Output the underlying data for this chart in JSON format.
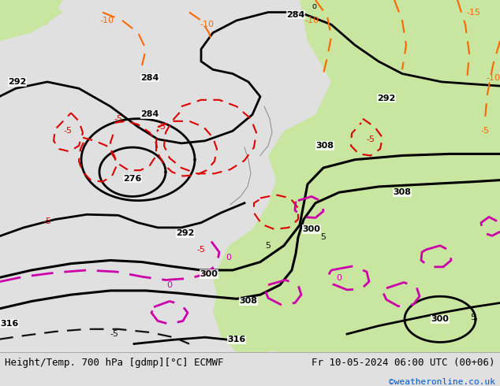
{
  "title_left": "Height/Temp. 700 hPa [gdmp][°C] ECMWF",
  "title_right": "Fr 10-05-2024 06:00 UTC (00+06)",
  "credit": "©weatheronline.co.uk",
  "bg_ocean": "#d8d8d8",
  "bg_land_green": "#c8e6a0",
  "bg_land_dark": "#b8d890",
  "contour_color": "#000000",
  "temp_warm_color": "#ff6600",
  "temp_cold_color_red": "#dd0000",
  "temp_cold_color_magenta": "#cc00aa",
  "bottom_bar_color": "#e0e0e0",
  "title_fontsize": 9,
  "credit_color": "#0055cc",
  "credit_fontsize": 8,
  "figsize": [
    6.34,
    4.9
  ],
  "dpi": 100
}
